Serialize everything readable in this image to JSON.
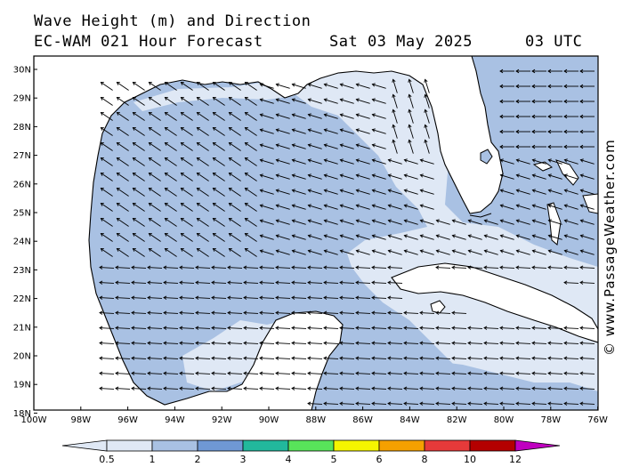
{
  "title": {
    "line1": "Wave Height (m) and Direction",
    "model": "EC-WAM 021 Hour Forecast",
    "date": "Sat 03 May 2025",
    "time": "03 UTC"
  },
  "credit": "© www.PassageWeather.com",
  "map": {
    "region": "Gulf of Mexico",
    "lon_range": [
      -100,
      -76
    ],
    "lat_range": [
      18,
      30.5
    ],
    "lat_ticks": [
      "30N",
      "29N",
      "28N",
      "27N",
      "26N",
      "25N",
      "24N",
      "23N",
      "22N",
      "21N",
      "20N",
      "19N",
      "18N"
    ],
    "lon_ticks": [
      "100W",
      "98W",
      "96W",
      "94W",
      "92W",
      "90W",
      "88W",
      "86W",
      "84W",
      "82W",
      "80W",
      "78W",
      "76W"
    ],
    "land_color": "#ffffff",
    "wave_color_default": "#a9c1e3",
    "wave_color_low": "#dfe8f5"
  },
  "legend": {
    "labels": [
      "0.5",
      "1",
      "2",
      "3",
      "4",
      "5",
      "6",
      "8",
      "10",
      "12"
    ],
    "colors": [
      "#dfe8f5",
      "#a9c1e3",
      "#6f98d4",
      "#22b89c",
      "#58e35a",
      "#f5f500",
      "#f5a000",
      "#e63a3a",
      "#b40000",
      "#c000c0"
    ]
  }
}
